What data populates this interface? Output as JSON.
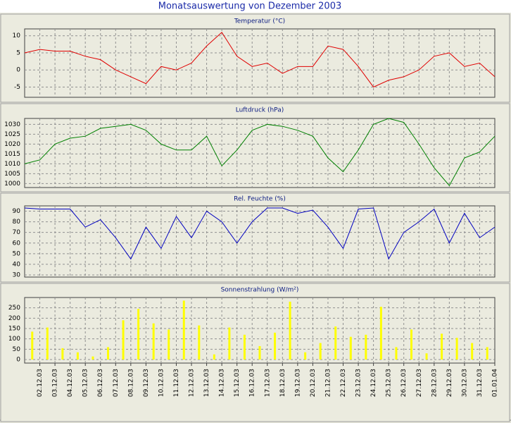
{
  "title": "Monatsauswertung von Dezember 2003",
  "chart_data": [
    {
      "type": "line",
      "title": "Temperatur (°C)",
      "grid": true,
      "series": [
        {
          "name": "Temperatur",
          "color": "#e00000",
          "values": [
            5,
            6,
            5.5,
            5.5,
            4,
            3,
            0,
            -2,
            -4,
            1,
            0,
            2,
            7,
            11,
            4,
            1,
            2,
            -1,
            1,
            1,
            7,
            6,
            1,
            -5,
            -3,
            -2,
            0,
            4,
            5,
            1,
            2,
            -2
          ]
        }
      ],
      "ylim": [
        -8,
        12
      ],
      "yticks": [
        -5,
        0,
        5,
        10
      ]
    },
    {
      "type": "line",
      "title": "Luftdruck (hPa)",
      "grid": true,
      "series": [
        {
          "name": "Luftdruck",
          "color": "#008000",
          "values": [
            1010,
            1012,
            1020,
            1023,
            1024,
            1028,
            1029,
            1030,
            1027,
            1020,
            1017,
            1017,
            1024,
            1009,
            1017,
            1027,
            1030,
            1029,
            1027,
            1024,
            1013,
            1006,
            1017,
            1030,
            1033,
            1031,
            1020,
            1008,
            999,
            1013,
            1016,
            1024
          ]
        }
      ],
      "ylim": [
        998,
        1033
      ],
      "yticks": [
        1000,
        1005,
        1010,
        1015,
        1020,
        1025,
        1030
      ]
    },
    {
      "type": "line",
      "title": "Rel. Feuchte (%)",
      "grid": true,
      "series": [
        {
          "name": "Rel. Feuchte",
          "color": "#0000c0",
          "values": [
            93,
            92,
            92,
            92,
            75,
            82,
            65,
            45,
            75,
            55,
            85,
            65,
            90,
            80,
            60,
            80,
            93,
            93,
            88,
            91,
            75,
            55,
            92,
            93,
            45,
            70,
            80,
            92,
            60,
            88,
            65,
            75
          ]
        }
      ],
      "ylim": [
        28,
        95
      ],
      "yticks": [
        30,
        40,
        50,
        60,
        70,
        80,
        90
      ]
    },
    {
      "type": "bar",
      "title": "Sonnenstrahlung (W/m²)",
      "grid": true,
      "categories": [
        null,
        "02.12.03",
        "03.12.03",
        "04.12.03",
        "05.12.03",
        "06.12.03",
        "07.12.03",
        "08.12.03",
        "09.12.03",
        "10.12.03",
        "11.12.03",
        "12.12.03",
        "13.12.03",
        "14.12.03",
        "15.12.03",
        "16.12.03",
        "17.12.03",
        "18.12.03",
        "19.12.03",
        "20.12.03",
        "21.12.03",
        "22.12.03",
        "23.12.03",
        "24.12.03",
        "25.12.03",
        "26.12.03",
        "27.12.03",
        "28.12.03",
        "29.12.03",
        "30.12.03",
        "31.12.03",
        "01.01.04"
      ],
      "series": [
        {
          "name": "Sonnenstrahlung",
          "color": "#ffff00",
          "values": [
            135,
            155,
            55,
            35,
            15,
            60,
            190,
            245,
            175,
            145,
            285,
            165,
            25,
            155,
            120,
            65,
            130,
            280,
            35,
            80,
            160,
            110,
            120,
            255,
            60,
            145,
            30,
            125,
            105,
            80,
            60,
            null
          ]
        }
      ],
      "ylim": [
        -17,
        300
      ],
      "yticks": [
        0,
        50,
        100,
        150,
        200,
        250
      ]
    }
  ]
}
